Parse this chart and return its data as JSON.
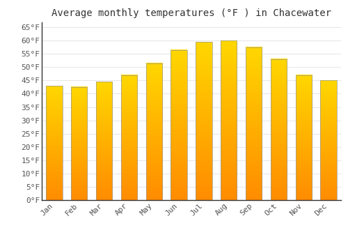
{
  "months": [
    "Jan",
    "Feb",
    "Mar",
    "Apr",
    "May",
    "Jun",
    "Jul",
    "Aug",
    "Sep",
    "Oct",
    "Nov",
    "Dec"
  ],
  "values": [
    43,
    42.5,
    44.5,
    47,
    51.5,
    56.5,
    59.5,
    60,
    57.5,
    53,
    47,
    45
  ],
  "bar_color_top": "#FFC200",
  "bar_color_bottom": "#FF8C00",
  "bar_edge_color": "#999999",
  "title": "Average monthly temperatures (°F ) in Chacewater",
  "ylim": [
    0,
    67
  ],
  "yticks": [
    0,
    5,
    10,
    15,
    20,
    25,
    30,
    35,
    40,
    45,
    50,
    55,
    60,
    65
  ],
  "ytick_labels": [
    "0°F",
    "5°F",
    "10°F",
    "15°F",
    "20°F",
    "25°F",
    "30°F",
    "35°F",
    "40°F",
    "45°F",
    "50°F",
    "55°F",
    "60°F",
    "65°F"
  ],
  "background_color": "#ffffff",
  "grid_color": "#e8e8e8",
  "title_fontsize": 10,
  "tick_fontsize": 8,
  "font_family": "monospace",
  "bar_width": 0.65
}
